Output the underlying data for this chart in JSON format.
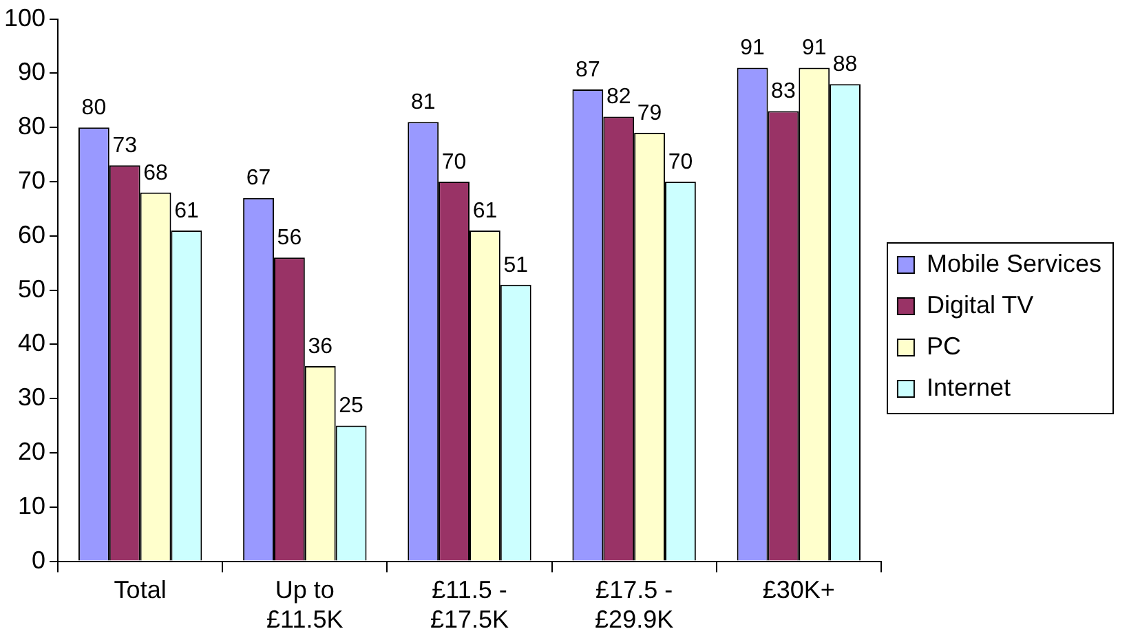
{
  "chart_data": {
    "type": "bar",
    "categories": [
      "Total",
      "Up to £11.5K",
      "£11.5 - £17.5K",
      "£17.5 - £29.9K",
      "£30K+"
    ],
    "series": [
      {
        "name": "Mobile Services",
        "color": "#9999ff",
        "values": [
          80,
          67,
          81,
          87,
          91
        ]
      },
      {
        "name": "Digital TV",
        "color": "#993366",
        "values": [
          73,
          56,
          70,
          82,
          83
        ]
      },
      {
        "name": "PC",
        "color": "#ffffcc",
        "values": [
          68,
          36,
          61,
          79,
          91
        ]
      },
      {
        "name": "Internet",
        "color": "#ccffff",
        "values": [
          61,
          25,
          51,
          70,
          88
        ]
      }
    ],
    "ylim": [
      0,
      100
    ],
    "yticks": [
      0,
      10,
      20,
      30,
      40,
      50,
      60,
      70,
      80,
      90,
      100
    ],
    "grid": false,
    "legend": "right",
    "data_labels": true
  }
}
